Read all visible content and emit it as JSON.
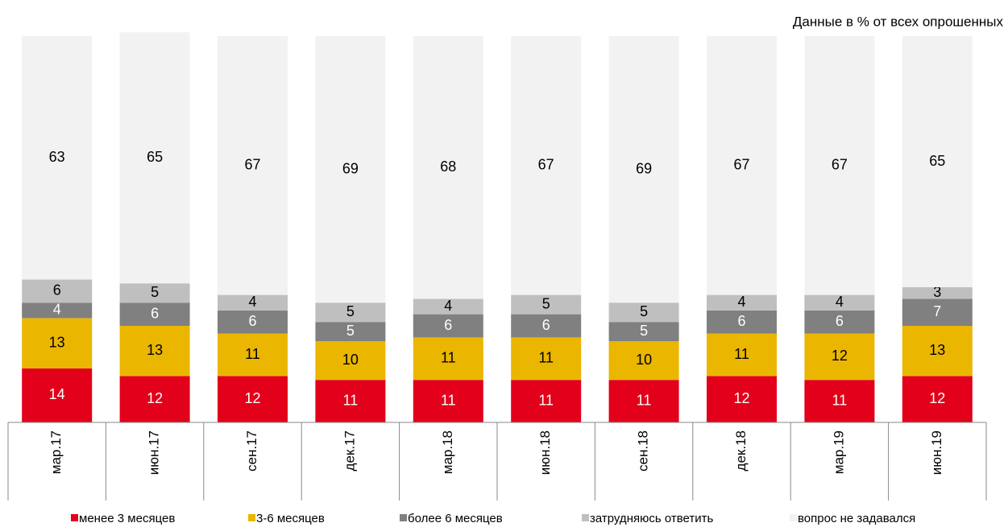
{
  "chart_data": {
    "type": "stacked_bar",
    "subtitle": "Данные в % от всех опрошенных",
    "categories": [
      "мар.17",
      "июн.17",
      "сен.17",
      "дек.17",
      "мар.18",
      "июн.18",
      "сен.18",
      "дек.18",
      "мар.19",
      "июн.19"
    ],
    "series": [
      {
        "name": "менее 3 месяцев",
        "color": "#e2001a",
        "label_color": "#ffffff",
        "values": [
          14,
          12,
          12,
          11,
          11,
          11,
          11,
          12,
          11,
          12
        ]
      },
      {
        "name": "3-6 месяцев",
        "color": "#eab600",
        "label_color": "#000000",
        "values": [
          13,
          13,
          11,
          10,
          11,
          11,
          10,
          11,
          12,
          13
        ]
      },
      {
        "name": "более 6 месяцев",
        "color": "#808080",
        "label_color": "#ffffff",
        "values": [
          4,
          6,
          6,
          5,
          6,
          6,
          5,
          6,
          6,
          7
        ]
      },
      {
        "name": "затрудняюсь ответить",
        "color": "#bfbfbf",
        "label_color": "#000000",
        "values": [
          6,
          5,
          4,
          5,
          4,
          5,
          5,
          4,
          4,
          3
        ]
      },
      {
        "name": "вопрос не задавался",
        "color": "#f2f2f2",
        "label_color": "#000000",
        "values": [
          63,
          65,
          67,
          69,
          68,
          67,
          69,
          67,
          67,
          65
        ]
      }
    ],
    "ylim": [
      0,
      100
    ]
  }
}
